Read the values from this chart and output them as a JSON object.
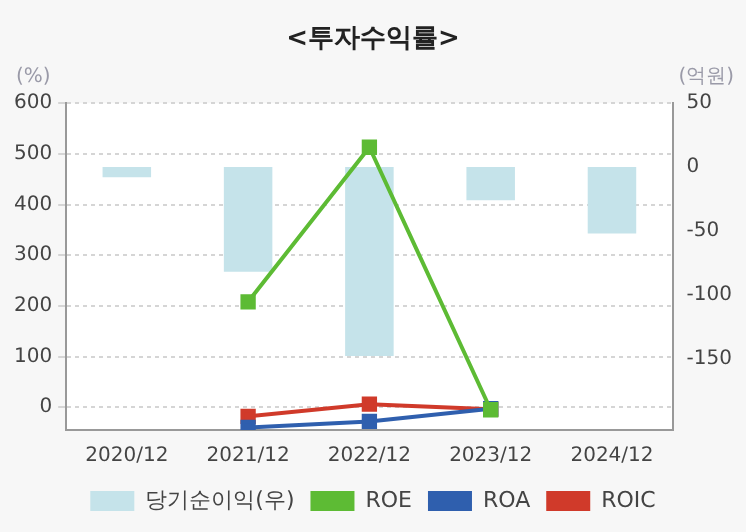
{
  "chart_data": {
    "type": "bar",
    "title": "<투자수익률>",
    "ylabel": "(%)",
    "y2label": "(억원)",
    "categories": [
      "2020/12",
      "2021/12",
      "2022/12",
      "2023/12",
      "2024/12"
    ],
    "series": [
      {
        "name": "당기순이익(우)",
        "axis": "y2",
        "color": "#c5e3ea",
        "values": [
          -8,
          -82,
          -148,
          -26,
          -52
        ]
      },
      {
        "name": "ROE",
        "type": "line",
        "color": "#5dbb34",
        "values": [
          null,
          208,
          513,
          -5,
          null
        ]
      },
      {
        "name": "ROA",
        "type": "line",
        "color": "#2f5fae",
        "values": [
          null,
          -40,
          -28,
          -3,
          null
        ]
      },
      {
        "name": "ROIC",
        "type": "line",
        "color": "#d03a2a",
        "values": [
          null,
          -18,
          6,
          -4,
          null
        ]
      }
    ],
    "ylim": [
      -45,
      600
    ],
    "yticks": [
      0,
      100,
      200,
      300,
      400,
      500,
      600
    ],
    "y2lim": [
      -206,
      50
    ],
    "y2ticks": [
      -150,
      -100,
      -50,
      0,
      50
    ],
    "grid": "y",
    "legend": "bottom",
    "marker": "square",
    "line_style": "solid"
  }
}
